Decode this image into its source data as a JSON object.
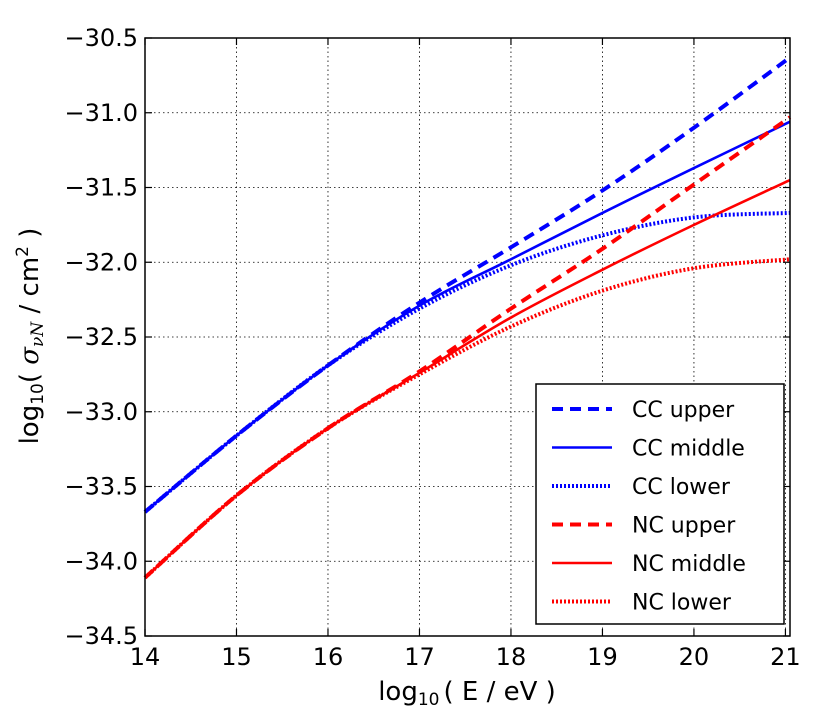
{
  "chart_data": {
    "type": "line",
    "title": "",
    "xlabel": {
      "prefix": "log",
      "sub": "10",
      "body": "( E / eV )"
    },
    "ylabel": {
      "prefix": "log",
      "sub": "10",
      "open": "( ",
      "symbol": "σ",
      "symbol_sub": "νN",
      "mid": " / cm",
      "sup": "2",
      "close": " )"
    },
    "xlim": [
      14,
      21.05
    ],
    "ylim": [
      -34.5,
      -30.5
    ],
    "xticks": [
      14,
      15,
      16,
      17,
      18,
      19,
      20,
      21
    ],
    "xtick_labels": [
      "14",
      "15",
      "16",
      "17",
      "18",
      "19",
      "20",
      "21"
    ],
    "yticks": [
      -30.5,
      -31.0,
      -31.5,
      -32.0,
      -32.5,
      -33.0,
      -33.5,
      -34.0,
      -34.5
    ],
    "ytick_labels": [
      "−30.5",
      "−31.0",
      "−31.5",
      "−32.0",
      "−32.5",
      "−33.0",
      "−33.5",
      "−34.0",
      "−34.5"
    ],
    "grid": true,
    "legend_position": "bottom-right",
    "x": [
      14,
      15,
      16,
      17,
      18,
      19,
      20,
      21.05
    ],
    "series": [
      {
        "name": "CC upper",
        "color": "#0000ff",
        "style": "dashed",
        "values": [
          -33.67,
          -33.16,
          -32.69,
          -32.27,
          -31.9,
          -31.52,
          -31.1,
          -30.63
        ]
      },
      {
        "name": "CC middle",
        "color": "#0000ff",
        "style": "solid",
        "values": [
          -33.67,
          -33.16,
          -32.69,
          -32.29,
          -31.98,
          -31.67,
          -31.37,
          -31.06
        ]
      },
      {
        "name": "CC lower",
        "color": "#0000ff",
        "style": "dotted",
        "values": [
          -33.67,
          -33.16,
          -32.69,
          -32.31,
          -32.02,
          -31.82,
          -31.7,
          -31.67
        ]
      },
      {
        "name": "NC upper",
        "color": "#ff0000",
        "style": "dashed",
        "values": [
          -34.11,
          -33.56,
          -33.11,
          -32.73,
          -32.31,
          -31.91,
          -31.48,
          -31.03
        ]
      },
      {
        "name": "NC middle",
        "color": "#ff0000",
        "style": "solid",
        "values": [
          -34.11,
          -33.56,
          -33.11,
          -32.74,
          -32.37,
          -32.05,
          -31.75,
          -31.45
        ]
      },
      {
        "name": "NC lower",
        "color": "#ff0000",
        "style": "dotted",
        "values": [
          -34.11,
          -33.56,
          -33.11,
          -32.75,
          -32.43,
          -32.19,
          -32.04,
          -31.98
        ]
      }
    ]
  }
}
